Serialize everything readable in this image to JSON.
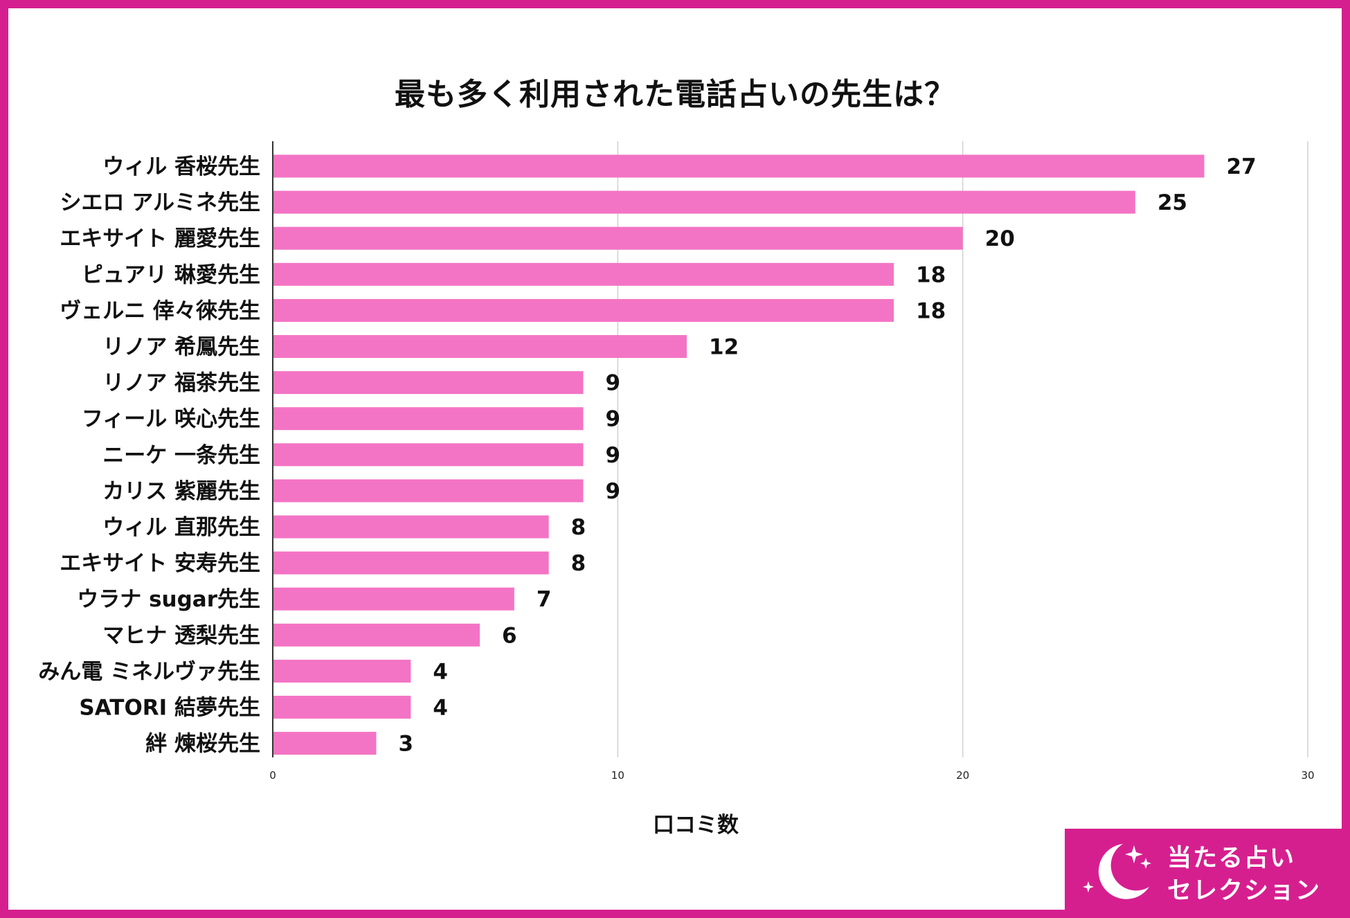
{
  "colors": {
    "border": "#d61f8f",
    "bar": "#f374c4",
    "grid": "#d0d0d0",
    "axis": "#333333",
    "logo_bg": "#d61f8f"
  },
  "logo": {
    "line1": "当たる占い",
    "line2": "セレクション",
    "icon": "crescent-moon-stars-icon"
  },
  "chart_data": {
    "type": "bar",
    "orientation": "horizontal",
    "title": "最も多く利用された電話占いの先生は？",
    "xlabel": "口コミ数",
    "ylabel": "",
    "xlim": [
      0,
      30
    ],
    "xticks": [
      0,
      10,
      20,
      30
    ],
    "grid": true,
    "categories": [
      "ウィル 香桜先生",
      "シエロ アルミネ先生",
      "エキサイト 麗愛先生",
      "ピュアリ 琳愛先生",
      "ヴェルニ 倖々徠先生",
      "リノア 希鳳先生",
      "リノア 福茶先生",
      "フィール 咲心先生",
      "ニーケ 一条先生",
      "カリス 紫麗先生",
      "ウィル 直那先生",
      "エキサイト 安寿先生",
      "ウラナ sugar先生",
      "マヒナ 透梨先生",
      "みん電 ミネルヴァ先生",
      "SATORI 結夢先生",
      "絆 煉桜先生"
    ],
    "values": [
      27,
      25,
      20,
      18,
      18,
      12,
      9,
      9,
      9,
      9,
      8,
      8,
      7,
      6,
      4,
      4,
      3
    ]
  }
}
